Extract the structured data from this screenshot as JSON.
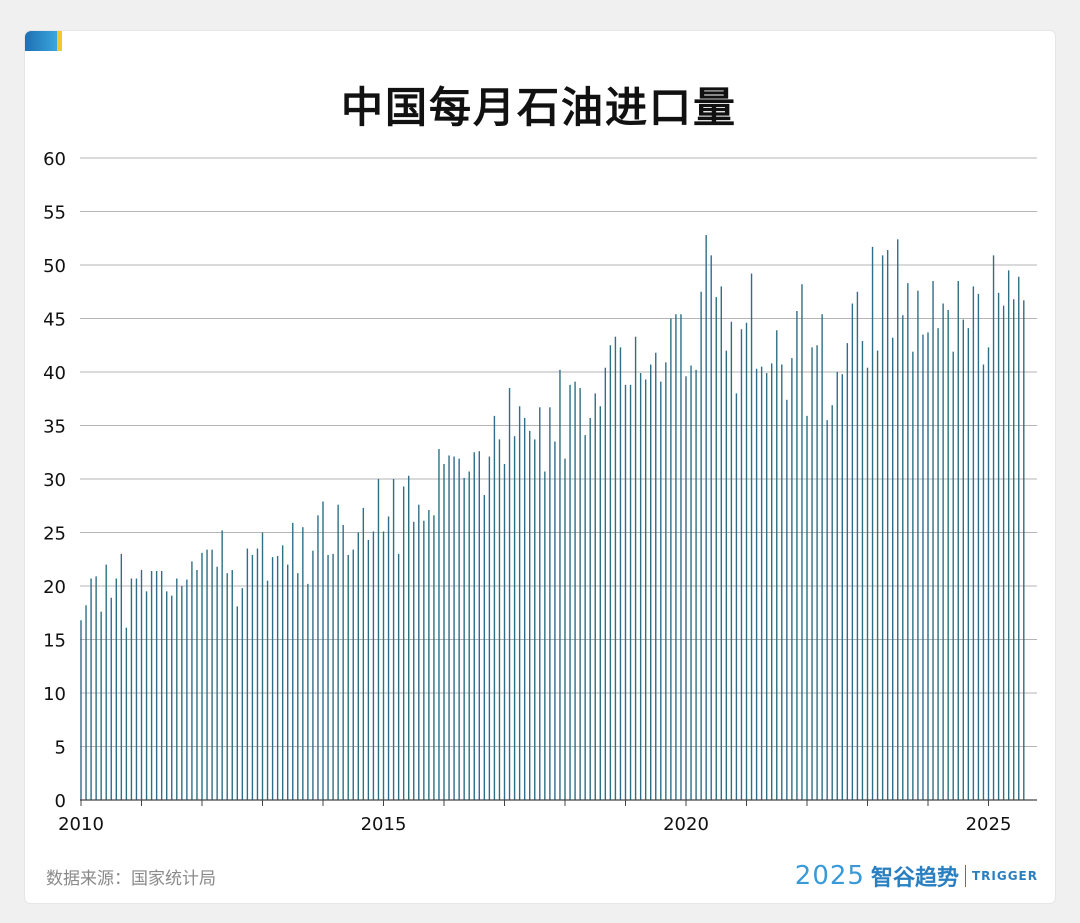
{
  "title": "中国每月石油进口量",
  "source": "数据来源：国家统计局",
  "logo": {
    "year": "2025",
    "cn": "智谷趋势",
    "en": "TRIGGER"
  },
  "colors": {
    "bar": "#2f6f86",
    "grid": "#b5b5b5",
    "accent_blue": "#1f6fb2",
    "accent_yellow": "#f2c531"
  },
  "chart_data": {
    "type": "bar",
    "title": "中国每月石油进口量",
    "xlabel": "",
    "ylabel": "",
    "ylim": [
      0,
      60
    ],
    "yticks": [
      0,
      5,
      10,
      15,
      20,
      25,
      30,
      35,
      40,
      45,
      50,
      55,
      60
    ],
    "xticks": [
      "2010",
      "2015",
      "2020",
      "2025"
    ],
    "x_start": "2010-01",
    "grid": true,
    "values": [
      16.8,
      18.2,
      20.7,
      20.9,
      17.6,
      22.0,
      18.9,
      20.7,
      23.0,
      16.1,
      20.7,
      20.7,
      21.5,
      19.5,
      21.4,
      21.4,
      21.4,
      19.5,
      19.1,
      20.7,
      20.0,
      20.6,
      22.3,
      21.5,
      23.1,
      23.4,
      23.4,
      21.8,
      25.2,
      21.2,
      21.5,
      18.1,
      19.8,
      23.5,
      22.9,
      23.5,
      25.0,
      20.5,
      22.7,
      22.8,
      23.8,
      22.0,
      25.9,
      21.2,
      25.5,
      20.2,
      23.3,
      26.6,
      27.9,
      22.9,
      23.0,
      27.6,
      25.7,
      22.9,
      23.4,
      25.0,
      27.3,
      24.3,
      25.1,
      30.0,
      25.1,
      26.5,
      30.0,
      23.0,
      29.3,
      30.3,
      26.0,
      27.6,
      26.1,
      27.1,
      26.6,
      32.8,
      31.4,
      32.2,
      32.1,
      31.9,
      30.1,
      30.7,
      32.5,
      32.6,
      28.5,
      32.1,
      35.9,
      33.7,
      31.4,
      38.5,
      34.0,
      36.8,
      35.7,
      34.5,
      33.7,
      36.7,
      30.7,
      36.7,
      33.5,
      40.2,
      31.9,
      38.8,
      39.1,
      38.5,
      34.1,
      35.7,
      38.0,
      36.8,
      40.4,
      42.5,
      43.3,
      42.3,
      38.8,
      38.8,
      43.3,
      39.9,
      39.3,
      40.7,
      41.8,
      39.1,
      40.9,
      45.0,
      45.4,
      45.4,
      39.6,
      40.6,
      40.2,
      47.5,
      52.8,
      50.9,
      47.0,
      48.0,
      42.0,
      44.7,
      38.0,
      44.0,
      44.6,
      49.2,
      40.3,
      40.5,
      39.9,
      40.8,
      43.9,
      40.7,
      37.4,
      41.3,
      45.7,
      48.2,
      35.9,
      42.3,
      42.5,
      45.4,
      35.5,
      36.9,
      40.0,
      39.8,
      42.7,
      46.4,
      47.5,
      42.9,
      40.4,
      51.7,
      42.0,
      50.9,
      51.4,
      43.2,
      52.4,
      45.3,
      48.3,
      41.9,
      47.6,
      43.5,
      43.7,
      48.5,
      44.1,
      46.4,
      45.8,
      41.9,
      48.5,
      44.9,
      44.1,
      48.0,
      47.3,
      40.7,
      42.3,
      50.9,
      47.4,
      46.2,
      49.5,
      46.8,
      48.9,
      46.7
    ]
  }
}
